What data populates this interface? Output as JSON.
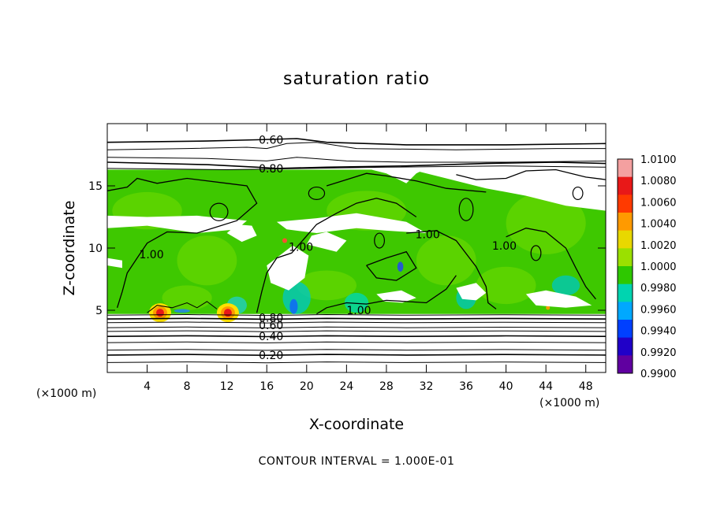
{
  "chart_data": {
    "type": "heatmap",
    "title": "saturation ratio",
    "xlabel": "X-coordinate",
    "ylabel": "Z-coordinate",
    "x_unit": "(×1000 m)",
    "y_unit": "(×1000 m)",
    "xlim": [
      0,
      50
    ],
    "ylim": [
      0,
      20
    ],
    "x_ticks": [
      4,
      8,
      12,
      16,
      20,
      24,
      28,
      32,
      36,
      40,
      44,
      48
    ],
    "y_ticks": [
      5,
      10,
      15
    ],
    "colorbar": {
      "min": 0.99,
      "max": 1.01,
      "levels": [
        "1.0100",
        "1.0080",
        "1.0060",
        "1.0040",
        "1.0020",
        "1.0000",
        "0.9980",
        "0.9960",
        "0.9940",
        "0.9920",
        "0.9900"
      ],
      "colors": [
        "#f4a0a0",
        "#e81818",
        "#ff3a00",
        "#ff9a00",
        "#e8d800",
        "#9be000",
        "#2ec800",
        "#00d4b0",
        "#00a8ff",
        "#0040ff",
        "#2000c8",
        "#6000a0"
      ]
    },
    "contour_labels": [
      {
        "text": "0.60",
        "x": 15.2,
        "y": 18.7
      },
      {
        "text": "0.80",
        "x": 15.2,
        "y": 16.4
      },
      {
        "text": "1.00",
        "x": 30.9,
        "y": 11.1
      },
      {
        "text": "1.00",
        "x": 18.2,
        "y": 10.1
      },
      {
        "text": "1.00",
        "x": 3.2,
        "y": 9.5
      },
      {
        "text": "1.00",
        "x": 38.6,
        "y": 10.2
      },
      {
        "text": "1.00",
        "x": 24.0,
        "y": 5.0
      },
      {
        "text": "0.80",
        "x": 15.2,
        "y": 4.4
      },
      {
        "text": "0.60",
        "x": 15.2,
        "y": 3.8
      },
      {
        "text": "0.40",
        "x": 15.2,
        "y": 2.9
      },
      {
        "text": "0.20",
        "x": 15.2,
        "y": 1.4
      }
    ],
    "contour_interval": "CONTOUR INTERVAL = 1.000E-01"
  }
}
